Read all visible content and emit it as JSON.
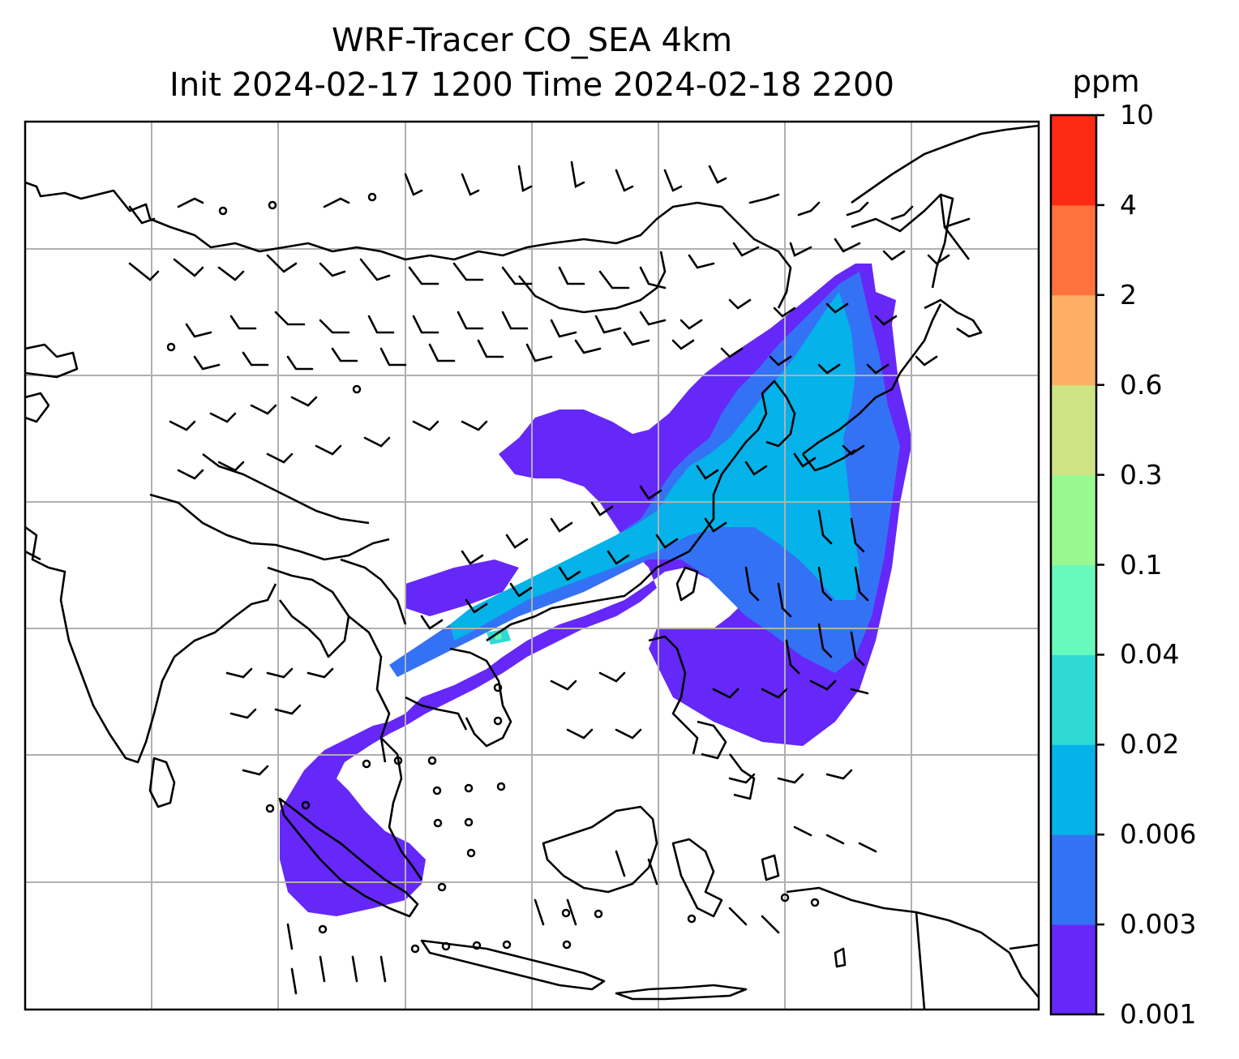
{
  "title": {
    "line1": "WRF-Tracer CO_SEA 4km",
    "line2": "Init 2024-02-17 1200 Time 2024-02-18 2200"
  },
  "colorbar": {
    "units": "ppm",
    "levels": [
      "0.001",
      "0.003",
      "0.006",
      "0.02",
      "0.04",
      "0.1",
      "0.3",
      "0.6",
      "2",
      "4",
      "10"
    ],
    "colors": [
      "#6528f8",
      "#3472f5",
      "#05b2ea",
      "#2fdad4",
      "#68f9bd",
      "#9af891",
      "#cee485",
      "#fdb063",
      "#fe723c",
      "#fe2a14"
    ]
  },
  "map": {
    "gridlines": true,
    "grid_color": "#b0b0b0",
    "coastline_color": "#000000",
    "region": "Southeast and East Asia"
  }
}
